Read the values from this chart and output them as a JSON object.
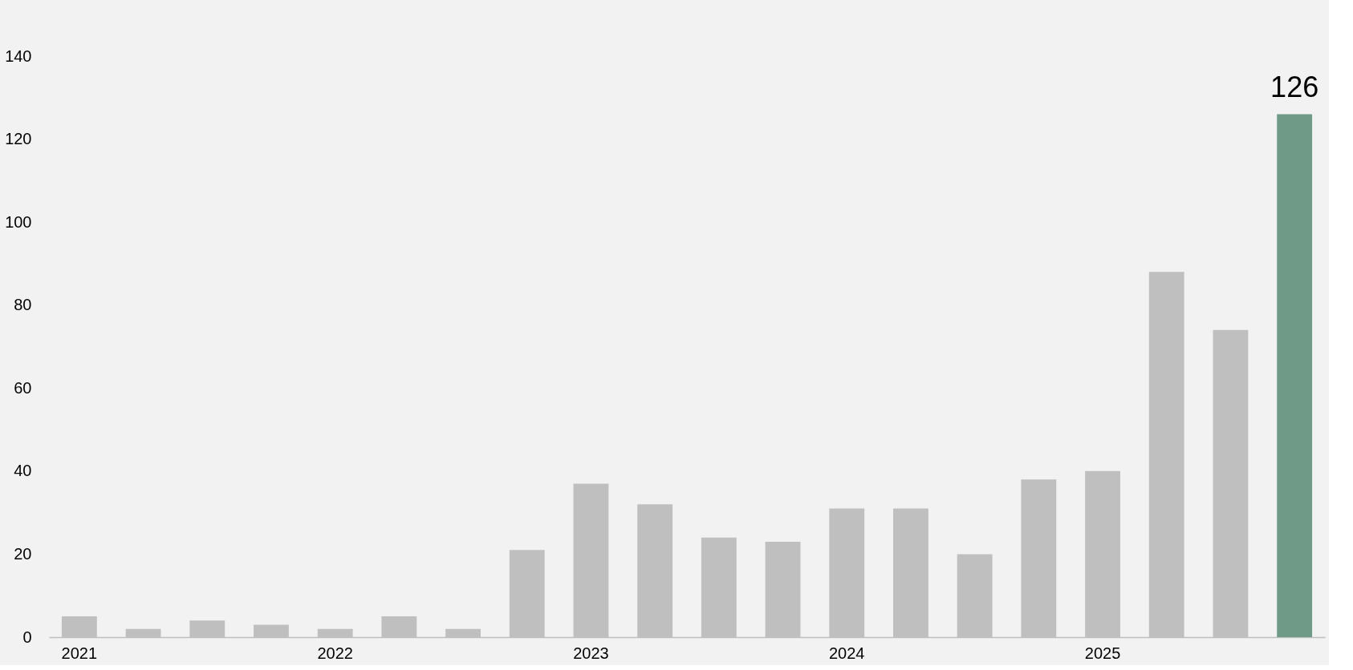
{
  "chart_data": {
    "type": "bar",
    "categories": [
      "2021",
      null,
      null,
      null,
      "2022",
      null,
      null,
      null,
      "2023",
      null,
      null,
      null,
      "2024",
      null,
      null,
      null,
      "2025",
      null,
      null,
      null
    ],
    "values": [
      5,
      2,
      4,
      3,
      2,
      5,
      2,
      21,
      37,
      32,
      24,
      23,
      31,
      31,
      20,
      38,
      40,
      88,
      74,
      126
    ],
    "colors": [
      "#bfbfbf",
      "#bfbfbf",
      "#bfbfbf",
      "#bfbfbf",
      "#bfbfbf",
      "#bfbfbf",
      "#bfbfbf",
      "#bfbfbf",
      "#bfbfbf",
      "#bfbfbf",
      "#bfbfbf",
      "#bfbfbf",
      "#bfbfbf",
      "#bfbfbf",
      "#bfbfbf",
      "#bfbfbf",
      "#bfbfbf",
      "#bfbfbf",
      "#bfbfbf",
      "#6f9a88"
    ],
    "value_labels": [
      null,
      null,
      null,
      null,
      null,
      null,
      null,
      null,
      null,
      null,
      null,
      null,
      null,
      null,
      null,
      null,
      null,
      null,
      null,
      "126"
    ],
    "ylim": [
      0,
      140
    ],
    "yticks": [
      0,
      20,
      40,
      60,
      80,
      100,
      120,
      140
    ],
    "grid": false,
    "legend": false
  }
}
